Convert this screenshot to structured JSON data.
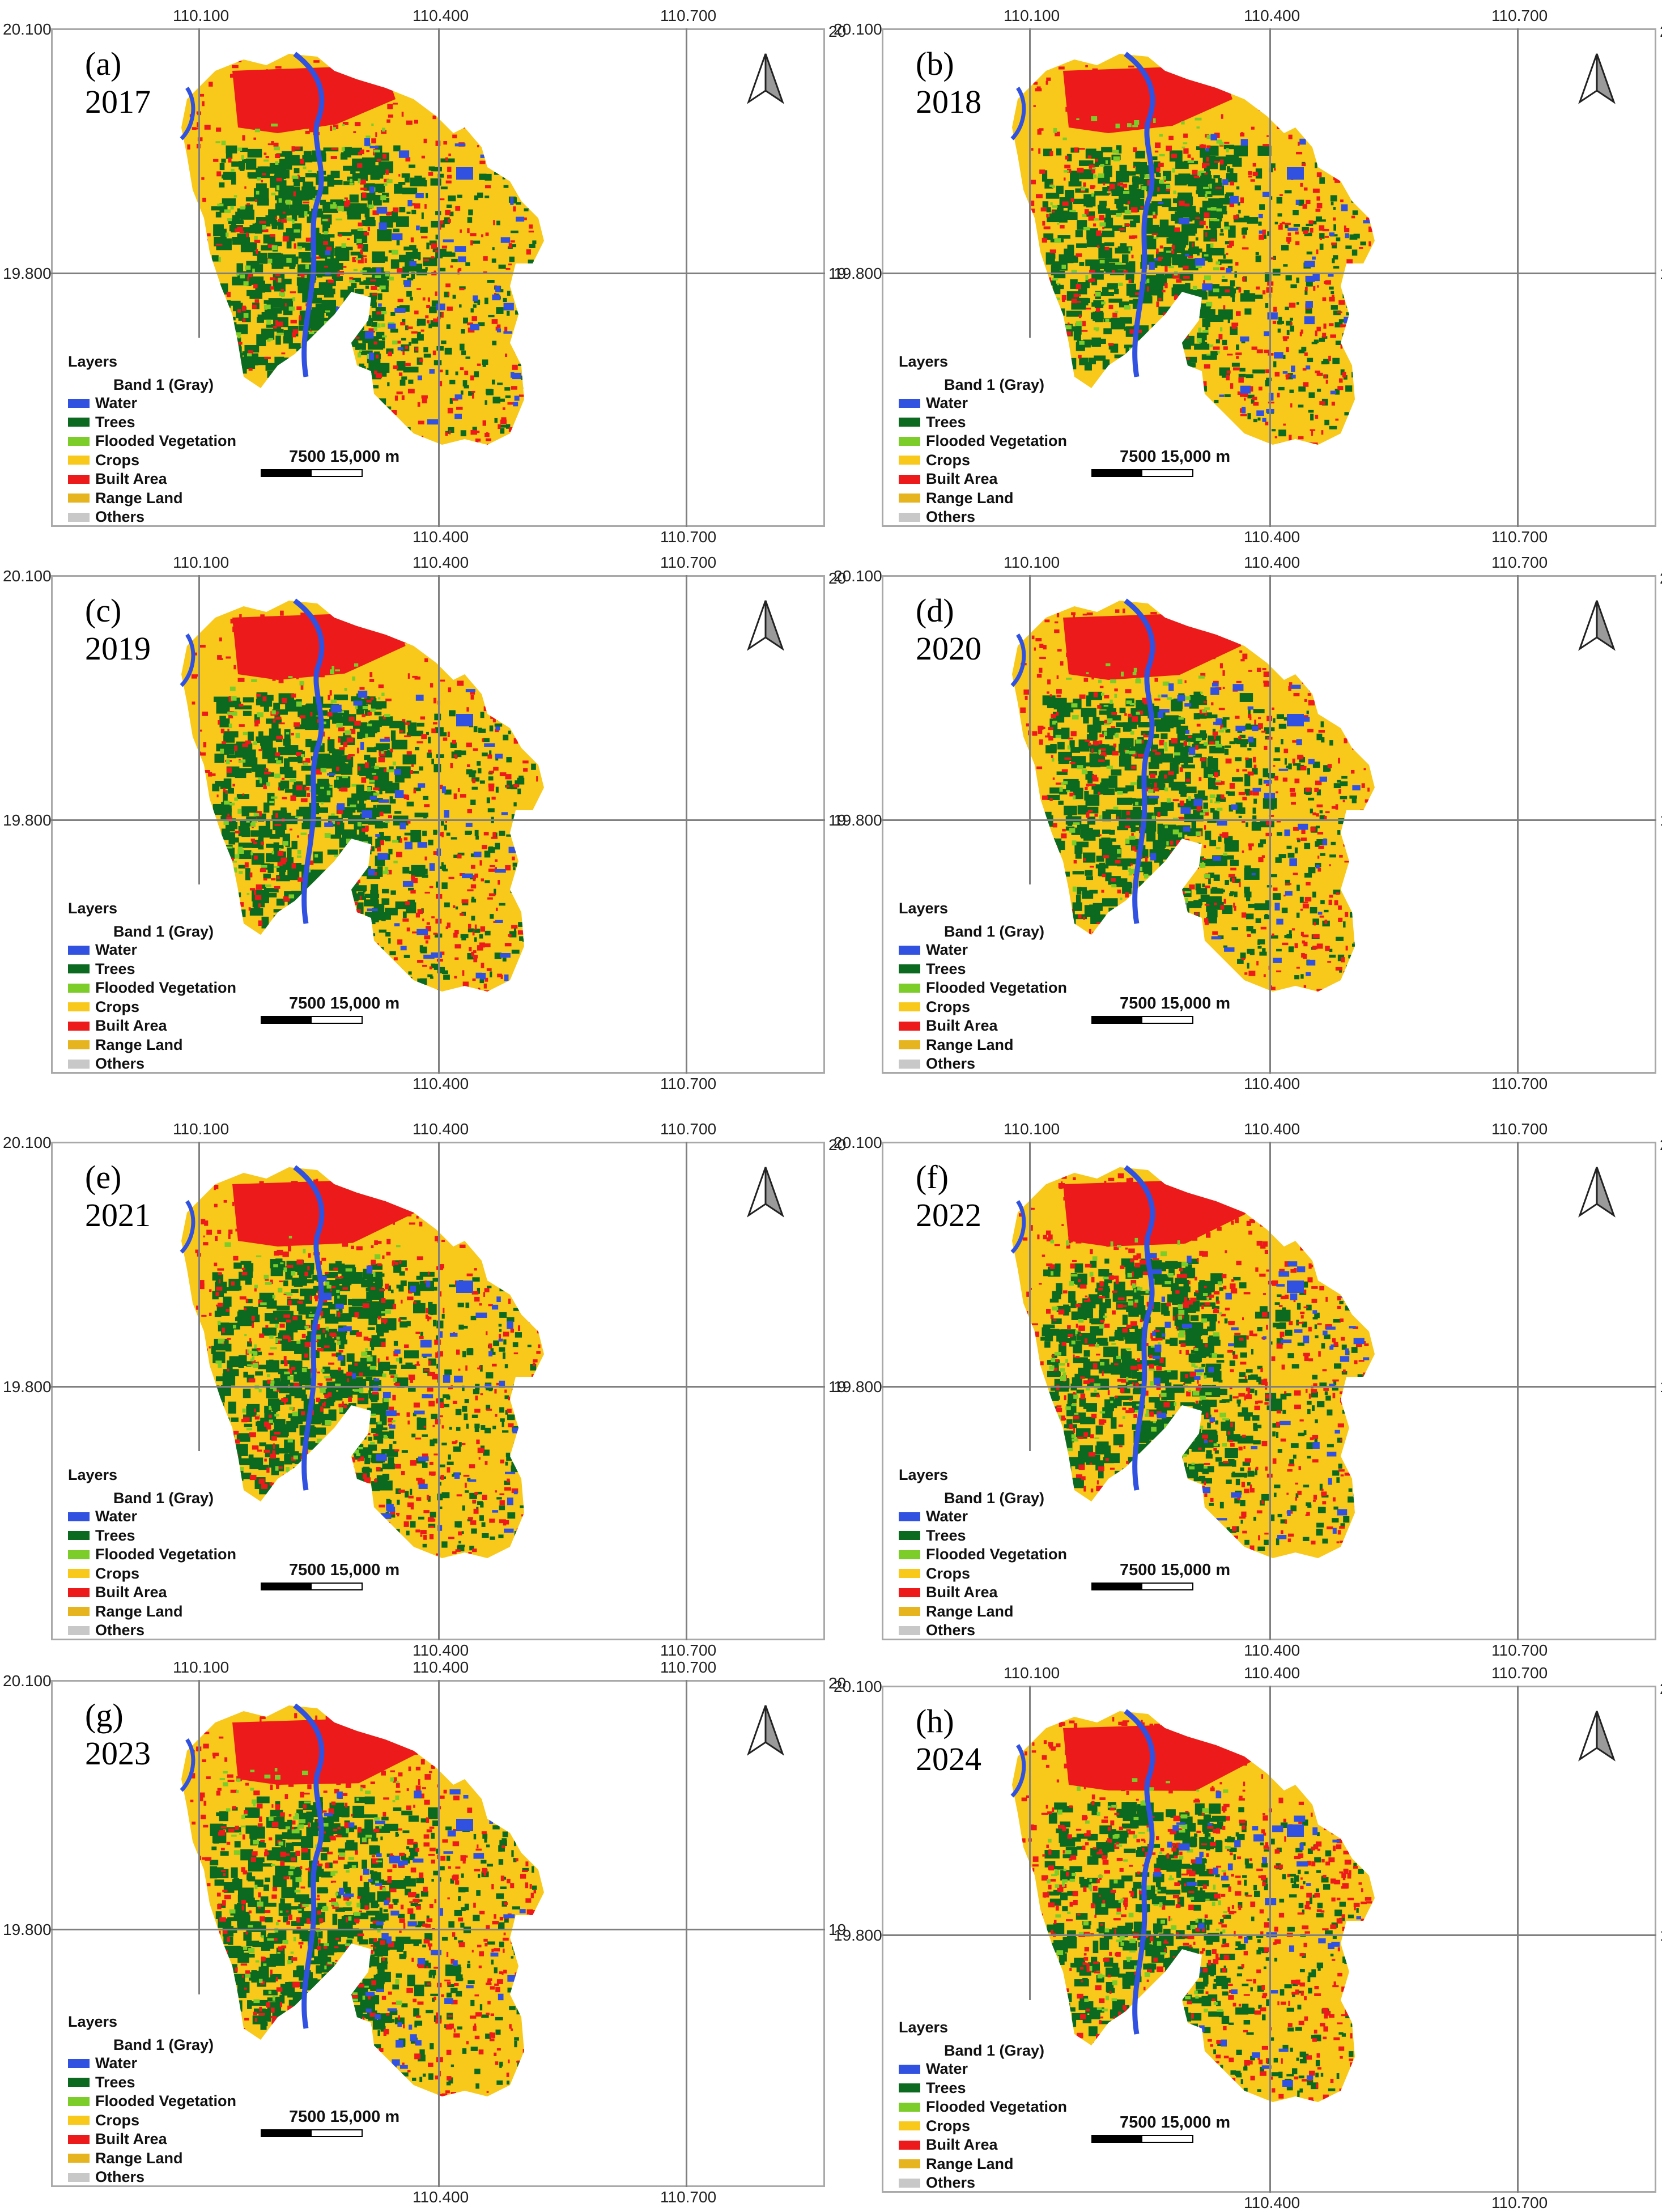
{
  "colors": {
    "water": "#3152e0",
    "trees": "#0b6a1f",
    "flooded_vegetation": "#7ccd2a",
    "crops": "#f8c81a",
    "built_area": "#ec1a1a",
    "range_land": "#e6b41e",
    "others": "#c8c8c8",
    "grid": "#808080",
    "frame": "#a9a9a9"
  },
  "ticks": {
    "top": [
      "110.100",
      "110.400",
      "110.700"
    ],
    "bottom": [
      "110.400",
      "110.700"
    ],
    "left_top": "20.100",
    "left_mid": "19.800",
    "right_top": "20",
    "right_mid": "19"
  },
  "legend": {
    "title": "Layers",
    "band": "Band 1 (Gray)",
    "items": [
      {
        "label": "Water",
        "color": "#3152e0"
      },
      {
        "label": "Trees",
        "color": "#0b6a1f"
      },
      {
        "label": "Flooded Vegetation",
        "color": "#7ccd2a"
      },
      {
        "label": "Crops",
        "color": "#f8c81a"
      },
      {
        "label": "Built Area",
        "color": "#ec1a1a"
      },
      {
        "label": "Range Land",
        "color": "#e6b41e"
      },
      {
        "label": "Others",
        "color": "#c8c8c8"
      }
    ]
  },
  "scale_label": "7500 15,000 m",
  "panels": [
    {
      "letter": "(a)",
      "year": "2017",
      "built_level": 0.4,
      "trees_level": 0.5
    },
    {
      "letter": "(b)",
      "year": "2018",
      "built_level": 0.45,
      "trees_level": 0.44
    },
    {
      "letter": "(c)",
      "year": "2019",
      "built_level": 0.48,
      "trees_level": 0.46
    },
    {
      "letter": "(d)",
      "year": "2020",
      "built_level": 0.52,
      "trees_level": 0.44
    },
    {
      "letter": "(e)",
      "year": "2021",
      "built_level": 0.56,
      "trees_level": 0.48
    },
    {
      "letter": "(f)",
      "year": "2022",
      "built_level": 0.58,
      "trees_level": 0.45
    },
    {
      "letter": "(g)",
      "year": "2023",
      "built_level": 0.62,
      "trees_level": 0.47
    },
    {
      "letter": "(h)",
      "year": "2024",
      "built_level": 0.68,
      "trees_level": 0.36
    }
  ]
}
